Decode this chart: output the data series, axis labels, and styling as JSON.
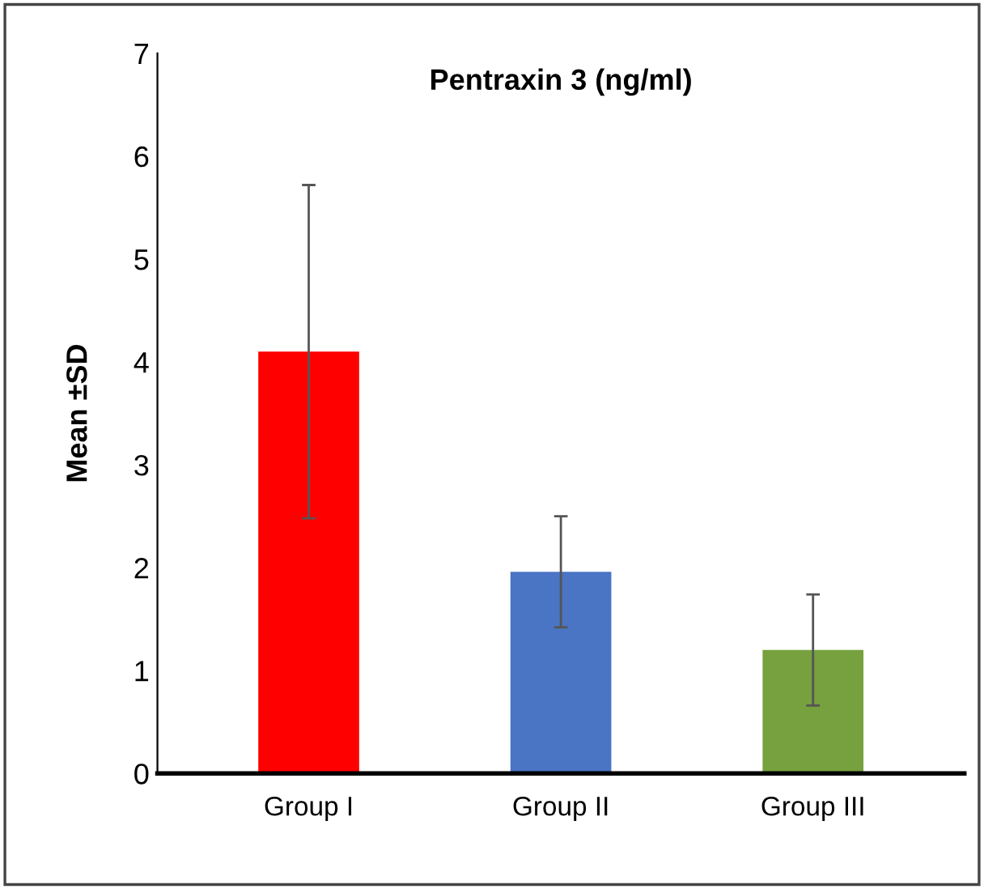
{
  "chart_data": {
    "type": "bar",
    "title": "Pentraxin 3 (ng/ml)",
    "ylabel": "Mean ±SD",
    "categories": [
      "Group I",
      "Group II",
      "Group III"
    ],
    "values": [
      4.1,
      1.96,
      1.2
    ],
    "errors": [
      1.62,
      0.54,
      0.54
    ],
    "colors": [
      "#ff0000",
      "#4a74c4",
      "#76a13e"
    ],
    "ylim": [
      0,
      7
    ],
    "yticks": [
      0,
      1,
      2,
      3,
      4,
      5,
      6,
      7
    ],
    "grid": false
  }
}
